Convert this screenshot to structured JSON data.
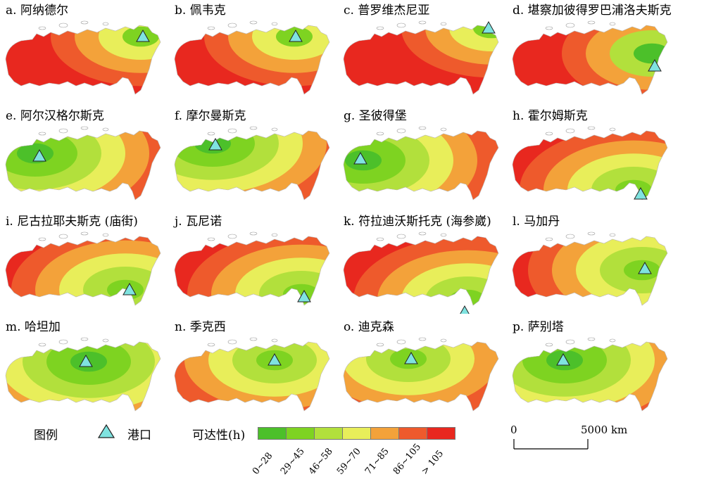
{
  "panels": [
    {
      "label": "a. 阿纳德尔",
      "port": "port-anadyr"
    },
    {
      "label": "b. 佩韦克",
      "port": "port-pevek"
    },
    {
      "label": "c. 普罗维杰尼亚",
      "port": "port-provideniya"
    },
    {
      "label": "d. 堪察加彼得罗巴浦洛夫斯克",
      "port": "port-petropavlovsk"
    },
    {
      "label": "e. 阿尔汉格尔斯克",
      "port": "port-arkhangelsk"
    },
    {
      "label": "f. 摩尔曼斯克",
      "port": "port-murmansk"
    },
    {
      "label": "g. 圣彼得堡",
      "port": "port-st-petersburg"
    },
    {
      "label": "h. 霍尔姆斯克",
      "port": "port-kholmsk"
    },
    {
      "label": "i. 尼古拉耶夫斯克 (庙街)",
      "port": "port-nikolayevsk"
    },
    {
      "label": "j. 瓦尼诺",
      "port": "port-vanino"
    },
    {
      "label": "k. 符拉迪沃斯托克 (海参崴)",
      "port": "port-vladivostok"
    },
    {
      "label": "l. 马加丹",
      "port": "port-magadan"
    },
    {
      "label": "m. 哈坦加",
      "port": "port-khatanga"
    },
    {
      "label": "n. 季克西",
      "port": "port-tiksi"
    },
    {
      "label": "o. 迪克森",
      "port": "port-dikson"
    },
    {
      "label": "p. 萨别塔",
      "port": "port-sabetta"
    }
  ],
  "legend": {
    "title": "图例",
    "port_label": "港口",
    "accessibility_title": "可达性(h)",
    "classes": [
      {
        "label": "0~28",
        "color": "#4cc02a"
      },
      {
        "label": "29~45",
        "color": "#7ed321"
      },
      {
        "label": "46~58",
        "color": "#b2e03c"
      },
      {
        "label": "59~70",
        "color": "#e8ee5a"
      },
      {
        "label": "71~85",
        "color": "#f3a23a"
      },
      {
        "label": "86~105",
        "color": "#ee5a2c"
      },
      {
        "label": "> 105",
        "color": "#e8281f"
      }
    ],
    "port_color": "#7fe3e0"
  },
  "scale_bar": {
    "start": "0",
    "end": "5000 km"
  }
}
